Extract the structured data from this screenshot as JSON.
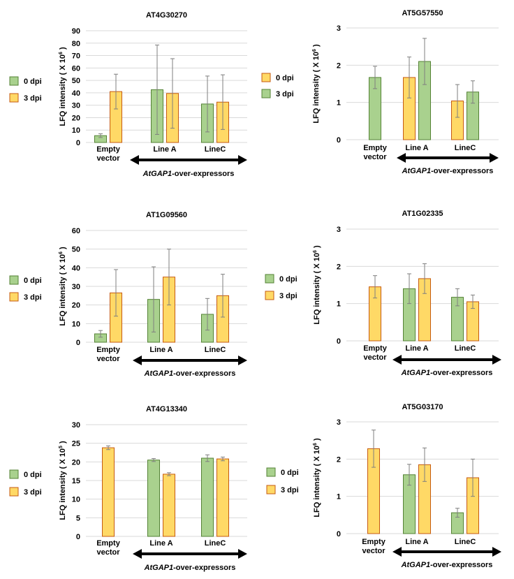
{
  "colors": {
    "green_fill": "#a9d18e",
    "green_stroke": "#548235",
    "yellow_fill": "#ffd966",
    "yellow_stroke": "#c55a11",
    "grid": "#d9d9d9",
    "error": "#7f7f7f",
    "text": "#000000"
  },
  "chart_data": [
    {
      "type": "bar",
      "title": "AT4G30270",
      "ylabel_prefix": "LFQ intensity ( X 10",
      "ylabel_exp": "6",
      "ylabel_suffix": ")",
      "ylim": [
        0,
        90
      ],
      "yticks": [
        0,
        10,
        20,
        30,
        40,
        50,
        60,
        70,
        80,
        90
      ],
      "categories": [
        [
          "Empty",
          "vector"
        ],
        [
          "Line A"
        ],
        [
          "LineC"
        ]
      ],
      "arrow_label": {
        "italic": "AtGAP1",
        "rest": "-over-expressors"
      },
      "legend": [
        {
          "name": "0 dpi",
          "color": "green"
        },
        {
          "name": "3 dpi",
          "color": "yellow"
        }
      ],
      "groups": [
        [
          {
            "series": "0 dpi",
            "color": "green",
            "value": 5.5,
            "err": 1.5
          },
          {
            "series": "3 dpi",
            "color": "yellow",
            "value": 41,
            "err": 14
          }
        ],
        [
          {
            "series": "0 dpi",
            "color": "green",
            "value": 42.5,
            "err": 36
          },
          {
            "series": "3 dpi",
            "color": "yellow",
            "value": 39.5,
            "err": 28
          }
        ],
        [
          {
            "series": "0 dpi",
            "color": "green",
            "value": 31,
            "err": 22.5
          },
          {
            "series": "3 dpi",
            "color": "yellow",
            "value": 32.5,
            "err": 22
          }
        ]
      ]
    },
    {
      "type": "bar",
      "title": "AT5G57550",
      "ylabel_prefix": "LFQ intensity ( X 10",
      "ylabel_exp": "6",
      "ylabel_suffix": ")",
      "ylim": [
        0,
        3
      ],
      "yticks": [
        0,
        1,
        2,
        3
      ],
      "categories": [
        [
          "Empty",
          "vector"
        ],
        [
          "Line A"
        ],
        [
          "LineC"
        ]
      ],
      "arrow_label": {
        "italic": "AtGAP1",
        "rest": "-over-expressors"
      },
      "legend": [
        {
          "name": "0 dpi",
          "color": "yellow"
        },
        {
          "name": "3 dpi",
          "color": "green"
        }
      ],
      "groups": [
        [
          {
            "series": "3 dpi",
            "color": "green",
            "value": 1.67,
            "err": 0.3
          }
        ],
        [
          {
            "series": "0 dpi",
            "color": "yellow",
            "value": 1.67,
            "err": 0.55
          },
          {
            "series": "3 dpi",
            "color": "green",
            "value": 2.1,
            "err": 0.62
          }
        ],
        [
          {
            "series": "0 dpi",
            "color": "yellow",
            "value": 1.04,
            "err": 0.44
          },
          {
            "series": "3 dpi",
            "color": "green",
            "value": 1.28,
            "err": 0.3
          }
        ]
      ]
    },
    {
      "type": "bar",
      "title": "AT1G09560",
      "ylabel_prefix": "LFQ intensity ( X 10",
      "ylabel_exp": "6",
      "ylabel_suffix": ")",
      "ylim": [
        0,
        60
      ],
      "yticks": [
        0,
        10,
        20,
        30,
        40,
        50,
        60
      ],
      "categories": [
        [
          "Empty",
          "vector"
        ],
        [
          "Line A"
        ],
        [
          "LineC"
        ]
      ],
      "arrow_label": {
        "italic": "AtGAP1",
        "rest": "-over-expressors"
      },
      "legend": [
        {
          "name": "0 dpi",
          "color": "green"
        },
        {
          "name": "3 dpi",
          "color": "yellow"
        }
      ],
      "groups": [
        [
          {
            "series": "0 dpi",
            "color": "green",
            "value": 4.5,
            "err": 1.8
          },
          {
            "series": "3 dpi",
            "color": "yellow",
            "value": 26.5,
            "err": 12.5
          }
        ],
        [
          {
            "series": "0 dpi",
            "color": "green",
            "value": 23,
            "err": 17.5
          },
          {
            "series": "3 dpi",
            "color": "yellow",
            "value": 35,
            "err": 15
          }
        ],
        [
          {
            "series": "0 dpi",
            "color": "green",
            "value": 15,
            "err": 8.5
          },
          {
            "series": "3 dpi",
            "color": "yellow",
            "value": 25,
            "err": 11.5
          }
        ]
      ]
    },
    {
      "type": "bar",
      "title": "AT1G02335",
      "ylabel_prefix": "LFQ intensity ( X 10",
      "ylabel_exp": "6",
      "ylabel_suffix": ")",
      "ylim": [
        0,
        3
      ],
      "yticks": [
        0,
        1,
        2,
        3
      ],
      "categories": [
        [
          "Empty",
          "vector"
        ],
        [
          "Line A"
        ],
        [
          "LineC"
        ]
      ],
      "arrow_label": {
        "italic": "AtGAP1",
        "rest": "-over-expressors"
      },
      "legend": [
        {
          "name": "0 dpi",
          "color": "green"
        },
        {
          "name": "3 dpi",
          "color": "yellow"
        }
      ],
      "groups": [
        [
          {
            "series": "3 dpi",
            "color": "yellow",
            "value": 1.45,
            "err": 0.3
          }
        ],
        [
          {
            "series": "0 dpi",
            "color": "green",
            "value": 1.4,
            "err": 0.4
          },
          {
            "series": "3 dpi",
            "color": "yellow",
            "value": 1.67,
            "err": 0.4
          }
        ],
        [
          {
            "series": "0 dpi",
            "color": "green",
            "value": 1.17,
            "err": 0.23
          },
          {
            "series": "3 dpi",
            "color": "yellow",
            "value": 1.05,
            "err": 0.18
          }
        ]
      ]
    },
    {
      "type": "bar",
      "title": "AT4G13340",
      "ylabel_prefix": "LFQ intensity ( X 10",
      "ylabel_exp": "5",
      "ylabel_suffix": ")",
      "ylim": [
        0,
        30
      ],
      "yticks": [
        0,
        5,
        10,
        15,
        20,
        25,
        30
      ],
      "categories": [
        [
          "Empty",
          "vector"
        ],
        [
          "Line A"
        ],
        [
          "LineC"
        ]
      ],
      "arrow_label": {
        "italic": "AtGAP1",
        "rest": "-over-expressors"
      },
      "legend": [
        {
          "name": "0 dpi",
          "color": "green"
        },
        {
          "name": "3 dpi",
          "color": "yellow"
        }
      ],
      "groups": [
        [
          {
            "series": "3 dpi",
            "color": "yellow",
            "value": 23.8,
            "err": 0.5
          }
        ],
        [
          {
            "series": "0 dpi",
            "color": "green",
            "value": 20.5,
            "err": 0.4
          },
          {
            "series": "3 dpi",
            "color": "yellow",
            "value": 16.7,
            "err": 0.4
          }
        ],
        [
          {
            "series": "0 dpi",
            "color": "green",
            "value": 21,
            "err": 0.9
          },
          {
            "series": "3 dpi",
            "color": "yellow",
            "value": 20.8,
            "err": 0.5
          }
        ]
      ]
    },
    {
      "type": "bar",
      "title": "AT5G03170",
      "ylabel_prefix": "LFQ intensity ( X 10",
      "ylabel_exp": "6",
      "ylabel_suffix": ")",
      "ylim": [
        0,
        3
      ],
      "yticks": [
        0,
        1,
        2,
        3
      ],
      "categories": [
        [
          "Empty",
          "vector"
        ],
        [
          "Line A"
        ],
        [
          "LineC"
        ]
      ],
      "arrow_label": {
        "italic": "AtGAP1",
        "rest": "-over-expressors"
      },
      "legend": [
        {
          "name": "0 dpi",
          "color": "green"
        },
        {
          "name": "3 dpi",
          "color": "yellow"
        }
      ],
      "groups": [
        [
          {
            "series": "3 dpi",
            "color": "yellow",
            "value": 2.28,
            "err": 0.5
          }
        ],
        [
          {
            "series": "0 dpi",
            "color": "green",
            "value": 1.58,
            "err": 0.28
          },
          {
            "series": "3 dpi",
            "color": "yellow",
            "value": 1.85,
            "err": 0.45
          }
        ],
        [
          {
            "series": "0 dpi",
            "color": "green",
            "value": 0.56,
            "err": 0.12
          },
          {
            "series": "3 dpi",
            "color": "yellow",
            "value": 1.5,
            "err": 0.5
          }
        ]
      ]
    }
  ]
}
